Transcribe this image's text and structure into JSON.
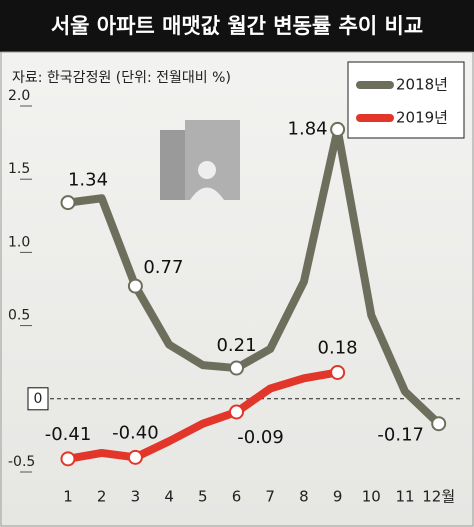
{
  "chart_data": {
    "type": "line",
    "title": "서울 아파트 매맷값 월간 변동률 추이 비교",
    "subtitle": "자료: 한국감정원  (단위: 전월대비 %)",
    "categories": [
      "1",
      "2",
      "3",
      "4",
      "5",
      "6",
      "7",
      "8",
      "9",
      "10",
      "11",
      "12월"
    ],
    "series": [
      {
        "name": "2018년",
        "color": "#6e6e5c",
        "values": [
          1.34,
          1.37,
          0.77,
          0.37,
          0.23,
          0.21,
          0.34,
          0.8,
          1.84,
          0.57,
          0.05,
          -0.17
        ],
        "value_labels": [
          "1.34",
          null,
          "0.77",
          null,
          null,
          "0.21",
          null,
          null,
          "1.84",
          null,
          null,
          "-0.17"
        ]
      },
      {
        "name": "2019년",
        "color": "#e2362b",
        "values": [
          -0.41,
          -0.37,
          -0.4,
          -0.29,
          -0.17,
          -0.09,
          0.07,
          0.14,
          0.18,
          null,
          null,
          null
        ],
        "value_labels": [
          "-0.41",
          null,
          "-0.40",
          null,
          null,
          "-0.09",
          null,
          null,
          "0.18",
          null,
          null,
          null
        ]
      }
    ],
    "ylim": [
      -0.5,
      2.0
    ],
    "yticks": [
      {
        "value": 2,
        "label": "2.0"
      },
      1.5,
      {
        "value": 1,
        "label": "1.0"
      },
      0.5,
      0,
      -0.5
    ],
    "legend": "top-right"
  }
}
